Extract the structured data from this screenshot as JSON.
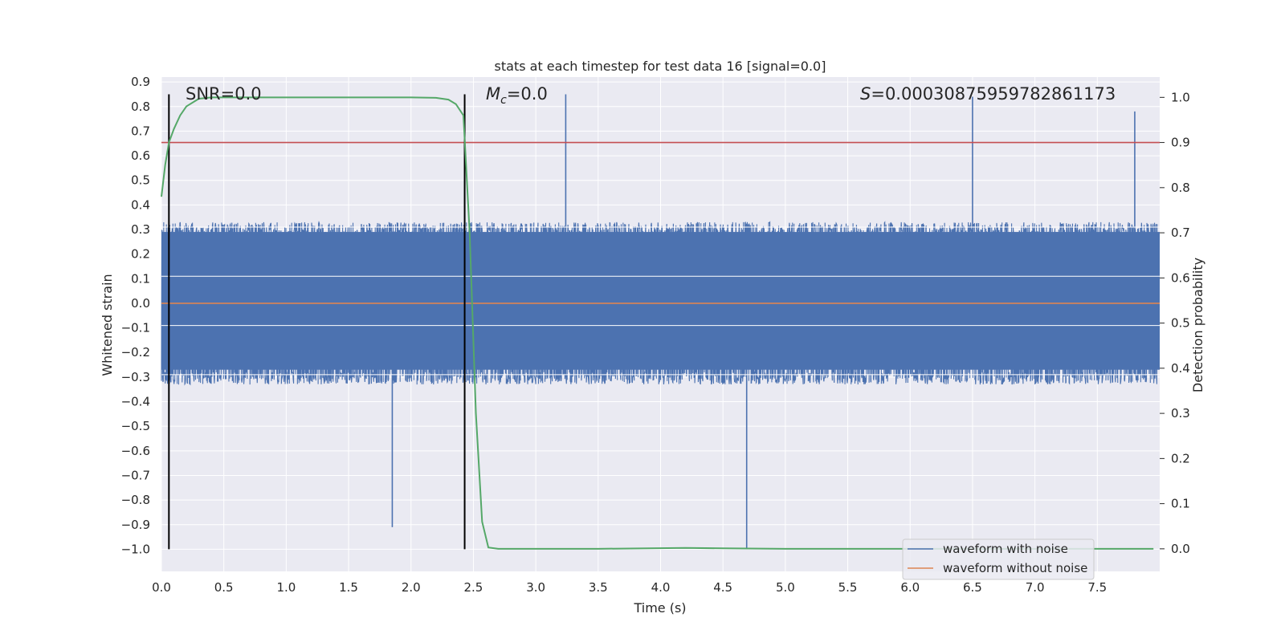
{
  "chart_data": {
    "type": "line",
    "title": "stats at each timestep for test data 16 [signal=0.0]",
    "xlabel": "Time (s)",
    "ylabel_left": "Whitened strain",
    "ylabel_right": "Detection probability",
    "xlim": [
      0.0,
      8.0
    ],
    "ylim_left": [
      -1.09,
      0.92
    ],
    "ylim_right": [
      -0.05,
      1.045
    ],
    "x_ticks": [
      "0.0",
      "0.5",
      "1.0",
      "1.5",
      "2.0",
      "2.5",
      "3.0",
      "3.5",
      "4.0",
      "4.5",
      "5.0",
      "5.5",
      "6.0",
      "6.5",
      "7.0",
      "7.5"
    ],
    "y_left_ticks": [
      "0.9",
      "0.8",
      "0.7",
      "0.6",
      "0.5",
      "0.4",
      "0.3",
      "0.2",
      "0.1",
      "0.0",
      "−0.1",
      "−0.2",
      "−0.3",
      "−0.4",
      "−0.5",
      "−0.6",
      "−0.7",
      "−0.8",
      "−0.9",
      "−1.0"
    ],
    "y_right_ticks": [
      "1.0",
      "0.9",
      "0.8",
      "0.7",
      "0.6",
      "0.5",
      "0.4",
      "0.3",
      "0.2",
      "0.1",
      "0.0"
    ],
    "annotations": {
      "snr": "SNR=0.0",
      "mc_sym": "M",
      "mc_sub": "c",
      "mc_val": "=0.0",
      "s_sym": "S",
      "s_val": "=0.00030875959782861173"
    },
    "series": [
      {
        "name": "waveform with noise",
        "axis": "left",
        "color": "#4c72b0",
        "kind": "noise",
        "typical_range": [
          -0.5,
          0.5
        ],
        "extremes": [
          {
            "x": 1.85,
            "y": -0.91
          },
          {
            "x": 4.69,
            "y": -1.0
          },
          {
            "x": 3.24,
            "y": 0.85
          },
          {
            "x": 6.5,
            "y": 0.84
          },
          {
            "x": 7.8,
            "y": 0.78
          }
        ]
      },
      {
        "name": "waveform without noise",
        "axis": "left",
        "color": "#dd8452",
        "x": [
          0.0,
          8.0
        ],
        "y": [
          0.0,
          0.0
        ]
      },
      {
        "name": "",
        "axis": "right",
        "color": "#55a868",
        "x": [
          0.0,
          0.03,
          0.06,
          0.1,
          0.15,
          0.2,
          0.3,
          0.4,
          0.6,
          1.0,
          1.5,
          2.0,
          2.2,
          2.3,
          2.36,
          2.42,
          2.47,
          2.52,
          2.57,
          2.62,
          2.7,
          3.0,
          3.5,
          4.2,
          4.5,
          5.0,
          6.0,
          7.0,
          7.95
        ],
        "y": [
          0.78,
          0.85,
          0.9,
          0.93,
          0.96,
          0.98,
          0.997,
          1.0,
          1.0,
          1.0,
          1.0,
          1.0,
          0.999,
          0.995,
          0.985,
          0.96,
          0.7,
          0.3,
          0.06,
          0.003,
          0.0,
          0.0,
          0.0,
          0.002,
          0.001,
          0.0,
          0.0,
          0.0,
          0.0
        ]
      }
    ],
    "threshold": {
      "axis": "right",
      "value": 0.9,
      "color": "#c44e52"
    },
    "vlines": [
      {
        "x": 0.06,
        "y_from": -1.0,
        "y_to": 0.85,
        "color": "#000000"
      },
      {
        "x": 2.43,
        "y_from": -1.0,
        "y_to": 0.85,
        "color": "#000000"
      }
    ],
    "legend": {
      "position": "lower-right"
    },
    "grid": true,
    "style": {
      "axes_bg": "#eaeaf2",
      "grid_color": "#ffffff"
    }
  }
}
